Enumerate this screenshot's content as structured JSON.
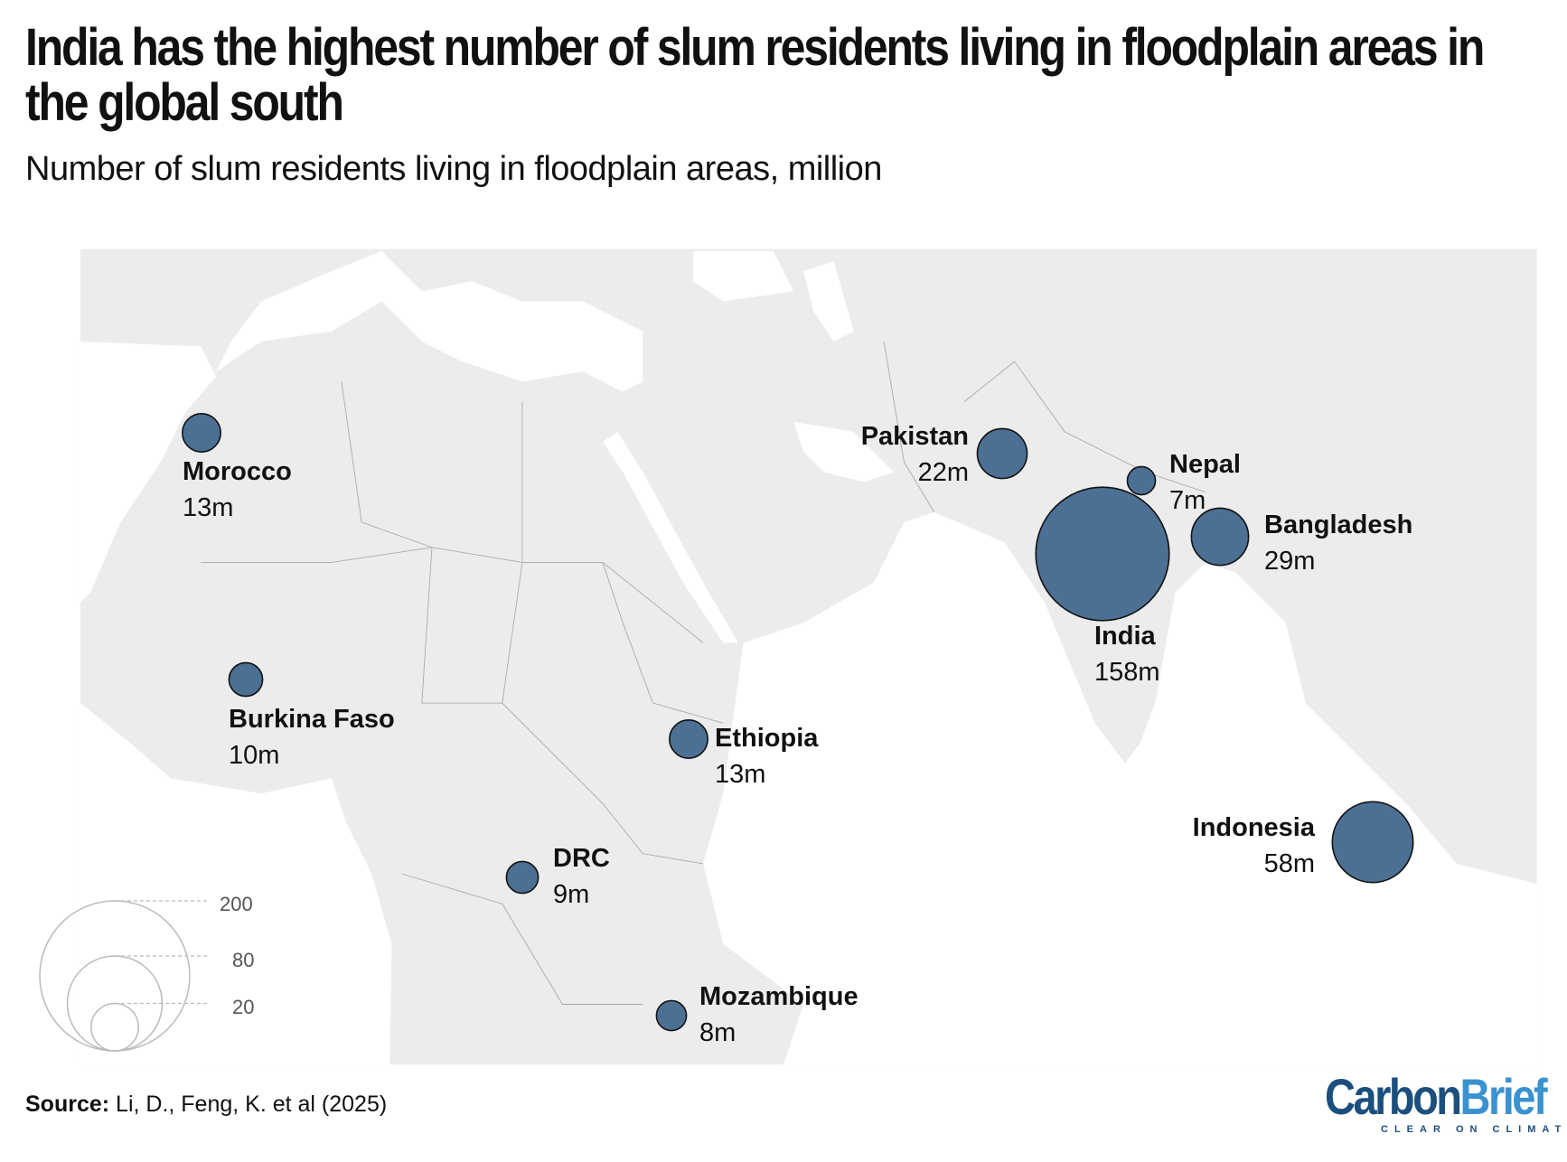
{
  "title": "India has the highest number of slum residents living in floodplain areas in the global south",
  "subtitle": "Number of slum residents living in floodplain areas, million",
  "colors": {
    "bubble": "#4b7094",
    "land": "#ececec",
    "sea": "#ffffff",
    "logo_dark": "#1b4f7e",
    "logo_light": "#3a92d0"
  },
  "countries": [
    {
      "name": "Morocco",
      "value": 13,
      "label": "13m"
    },
    {
      "name": "Burkina Faso",
      "value": 10,
      "label": "10m"
    },
    {
      "name": "Ethiopia",
      "value": 13,
      "label": "13m"
    },
    {
      "name": "DRC",
      "value": 9,
      "label": "9m"
    },
    {
      "name": "Mozambique",
      "value": 8,
      "label": "8m"
    },
    {
      "name": "Pakistan",
      "value": 22,
      "label": "22m"
    },
    {
      "name": "Nepal",
      "value": 7,
      "label": "7m"
    },
    {
      "name": "India",
      "value": 158,
      "label": "158m"
    },
    {
      "name": "Bangladesh",
      "value": 29,
      "label": "29m"
    },
    {
      "name": "Indonesia",
      "value": 58,
      "label": "58m"
    }
  ],
  "legend": {
    "values": [
      200,
      80,
      20
    ],
    "labels": [
      "200",
      "80",
      "20"
    ]
  },
  "source": {
    "label": "Source:",
    "text": "Li, D., Feng, K. et al (2025)"
  },
  "logo": {
    "part1": "Carbon",
    "part2": "Brief",
    "tagline": "CLEAR ON CLIMATE"
  }
}
